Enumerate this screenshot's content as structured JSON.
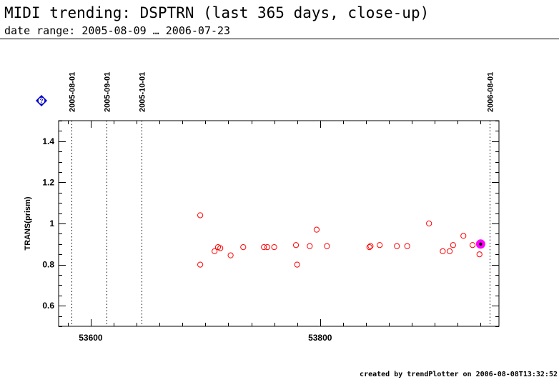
{
  "header": {
    "title": "MIDI trending: DSPTRN (last 365 days, close-up)",
    "subtitle": "date range: 2005-08-09 … 2006-07-23"
  },
  "badge": {
    "label": "?",
    "color": "#0000cc"
  },
  "footer": {
    "text": "created by trendPlotter on 2006-08-08T13:32:52"
  },
  "chart_data": {
    "type": "scatter",
    "title": "",
    "xlabel": "",
    "ylabel": "TRANS(prism)",
    "xlim": [
      53572,
      53956
    ],
    "ylim": [
      0.5,
      1.5
    ],
    "x_ticks": [
      53600,
      53800
    ],
    "y_ticks": [
      0.6,
      0.8,
      1,
      1.2,
      1.4
    ],
    "y_tick_labels": [
      "0.6",
      "0.8",
      "1",
      "1.2",
      "1.4"
    ],
    "grid": false,
    "marker_color": "#ff0000",
    "highlight_color": "#ff00ff",
    "date_markers": [
      {
        "label": "2005-08-01",
        "x": 53583
      },
      {
        "label": "2005-09-01",
        "x": 53614
      },
      {
        "label": "2005-10-01",
        "x": 53644
      },
      {
        "label": "2006-08-01",
        "x": 53948
      }
    ],
    "series": [
      {
        "values": [
          [
            53695.5,
            1.04
          ],
          [
            53695.5,
            0.8
          ],
          [
            53708,
            0.865
          ],
          [
            53711,
            0.885
          ],
          [
            53713,
            0.88
          ],
          [
            53722,
            0.845
          ],
          [
            53733,
            0.885
          ],
          [
            53751,
            0.885
          ],
          [
            53754,
            0.885
          ],
          [
            53760,
            0.885
          ],
          [
            53779,
            0.895
          ],
          [
            53780,
            0.8
          ],
          [
            53791,
            0.89
          ],
          [
            53797,
            0.97
          ],
          [
            53806,
            0.89
          ],
          [
            53843,
            0.885
          ],
          [
            53844,
            0.89
          ],
          [
            53852,
            0.895
          ],
          [
            53867,
            0.89
          ],
          [
            53876,
            0.89
          ],
          [
            53895,
            1.0
          ],
          [
            53907,
            0.865
          ],
          [
            53913,
            0.865
          ],
          [
            53916,
            0.895
          ],
          [
            53925,
            0.94
          ],
          [
            53933,
            0.895
          ],
          [
            53939,
            0.85
          ]
        ]
      }
    ],
    "latest_point": [
      53940,
      0.9
    ]
  }
}
